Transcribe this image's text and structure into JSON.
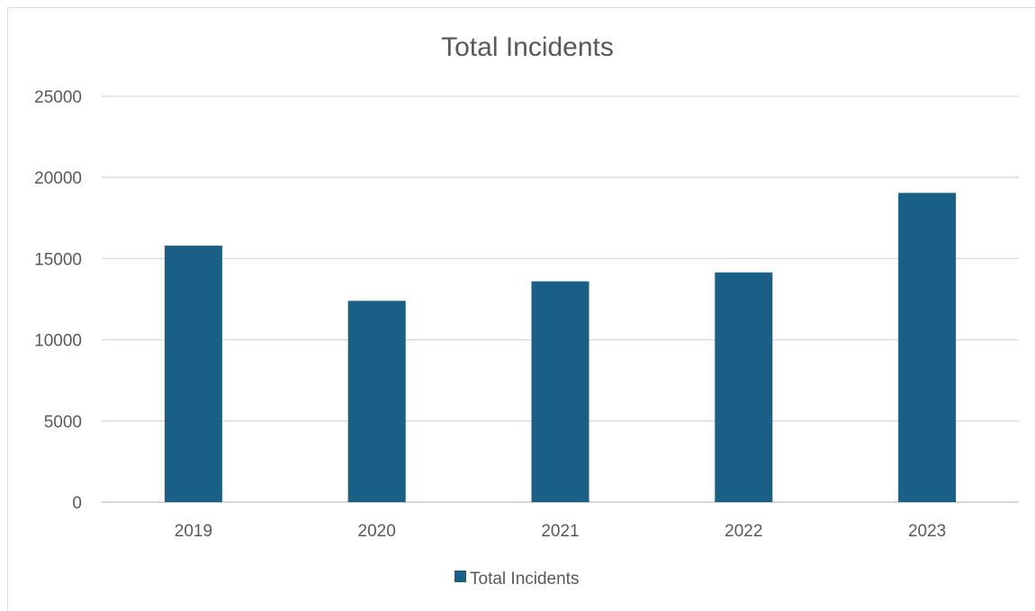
{
  "chart_data": {
    "type": "bar",
    "title": "Total Incidents",
    "xlabel": "",
    "ylabel": "",
    "categories": [
      "2019",
      "2020",
      "2021",
      "2022",
      "2023"
    ],
    "series": [
      {
        "name": "Total Incidents",
        "values": [
          15800,
          12400,
          13600,
          14150,
          19050
        ],
        "color": "#1a6086"
      }
    ],
    "ylim": [
      0,
      25000
    ],
    "yticks": [
      "0",
      "5000",
      "10000",
      "15000",
      "20000",
      "25000"
    ],
    "grid": true,
    "legend_position": "bottom"
  }
}
